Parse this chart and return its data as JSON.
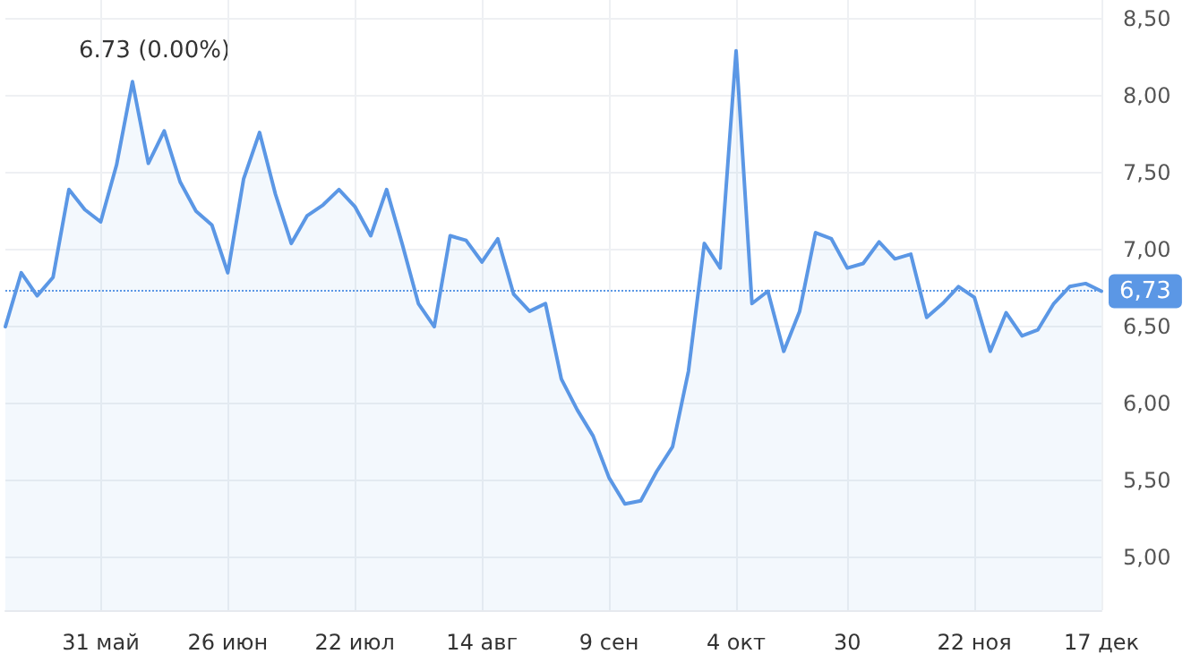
{
  "chart_data": {
    "type": "area",
    "annotations": [
      "6.73 (0.00%)"
    ],
    "categories": [
      null,
      null,
      null,
      null,
      null,
      null,
      "31 май",
      null,
      null,
      null,
      null,
      null,
      null,
      null,
      "26 июн",
      null,
      null,
      null,
      null,
      null,
      null,
      null,
      "22 июл",
      null,
      null,
      null,
      null,
      null,
      null,
      null,
      "14 авг",
      null,
      null,
      null,
      null,
      null,
      null,
      null,
      "9 сен",
      null,
      null,
      null,
      null,
      null,
      null,
      null,
      "4 окт",
      null,
      null,
      null,
      null,
      null,
      null,
      "30",
      null,
      null,
      null,
      null,
      null,
      null,
      null,
      "22 ноя",
      null,
      null,
      null,
      null,
      null,
      null,
      null,
      "17 дек"
    ],
    "series": [
      {
        "color": "#5b97e5",
        "values": [
          6.5,
          6.85,
          6.7,
          6.82,
          7.39,
          7.26,
          7.18,
          7.55,
          8.09,
          7.56,
          7.77,
          7.44,
          7.25,
          7.16,
          6.85,
          7.46,
          7.76,
          7.36,
          7.04,
          7.22,
          7.29,
          7.39,
          7.28,
          7.09,
          7.39,
          7.03,
          6.65,
          6.5,
          7.09,
          7.06,
          6.92,
          7.07,
          6.71,
          6.6,
          6.65,
          6.16,
          5.96,
          5.79,
          5.52,
          5.35,
          5.37,
          5.56,
          5.72,
          6.21,
          7.04,
          6.88,
          8.29,
          6.65,
          6.73,
          6.34,
          6.6,
          7.11,
          7.07,
          6.88,
          6.91,
          7.05,
          6.94,
          6.97,
          6.56,
          6.65,
          6.76,
          6.69,
          6.34,
          6.59,
          6.44,
          6.48,
          6.65,
          6.76,
          6.78,
          6.73
        ]
      }
    ],
    "ylim": [
      4.66,
      8.62
    ],
    "yticks": [
      {
        "value": 5,
        "label": "5,00"
      },
      {
        "value": 5.5,
        "label": "5,50"
      },
      {
        "value": 6,
        "label": "6,00"
      },
      {
        "value": 6.5,
        "label": "6,50"
      },
      {
        "value": 7,
        "label": "7,00"
      },
      {
        "value": 7.5,
        "label": "7,50"
      },
      {
        "value": 8,
        "label": "8,00"
      },
      {
        "value": 8.5,
        "label": "8,50"
      }
    ],
    "ref_lines": [
      {
        "axis": "y",
        "value": 6.73,
        "label": "6,73",
        "color": "#5b97e5",
        "line_style": "dotted"
      }
    ],
    "grid": true,
    "marker": "none",
    "line_style": "solid"
  }
}
